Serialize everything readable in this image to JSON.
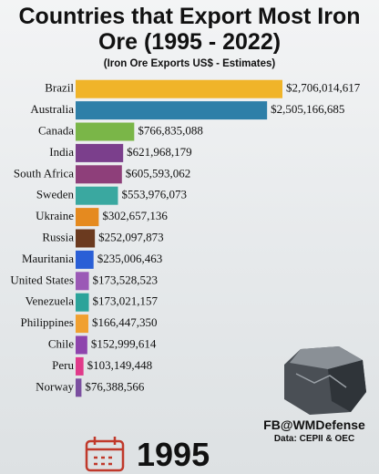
{
  "chart_data": {
    "type": "bar",
    "orientation": "horizontal",
    "title": "Countries that Export Most Iron Ore (1995 - 2022)",
    "subtitle": "(Iron Ore Exports US$ - Estimates)",
    "categories": [
      "Brazil",
      "Australia",
      "Canada",
      "India",
      "South Africa",
      "Sweden",
      "Ukraine",
      "Russia",
      "Mauritania",
      "United States",
      "Venezuela",
      "Philippines",
      "Chile",
      "Peru",
      "Norway"
    ],
    "values": [
      2706014617,
      2505166685,
      766835088,
      621968179,
      605593062,
      553976073,
      302657136,
      252097873,
      235006463,
      173528523,
      173021157,
      166447350,
      152999614,
      103149448,
      76388566
    ],
    "value_labels": [
      "$2,706,014,617",
      "$2,505,166,685",
      "$766,835,088",
      "$621,968,179",
      "$605,593,062",
      "$553,976,073",
      "$302,657,136",
      "$252,097,873",
      "$235,006,463",
      "$173,528,523",
      "$173,021,157",
      "$166,447,350",
      "$152,999,614",
      "$103,149,448",
      "$76,388,566"
    ],
    "colors": [
      "#f0b429",
      "#2e7fa8",
      "#7ab648",
      "#7b3f8c",
      "#8e3f7a",
      "#3aa8a0",
      "#e58a1f",
      "#6b3a1f",
      "#2a5fd6",
      "#9b59b6",
      "#2ba39a",
      "#f0a030",
      "#8e44ad",
      "#e03a8a",
      "#7b4fa0"
    ],
    "credit": "FB@WMDefense",
    "source": "Data: CEPII & OEC",
    "year": "1995"
  }
}
